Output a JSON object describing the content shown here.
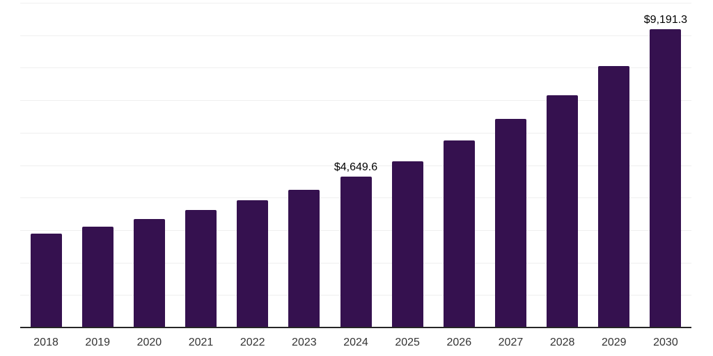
{
  "chart_data": {
    "type": "bar",
    "title": "",
    "xlabel": "",
    "ylabel": "",
    "categories": [
      "2018",
      "2019",
      "2020",
      "2021",
      "2022",
      "2023",
      "2024",
      "2025",
      "2026",
      "2027",
      "2028",
      "2029",
      "2030"
    ],
    "values": [
      2900,
      3110,
      3350,
      3615,
      3920,
      4250,
      4649.6,
      5120,
      5750,
      6420,
      7150,
      8060,
      9191.3
    ],
    "data_labels": [
      {
        "index": 6,
        "text": "$4,649.6"
      },
      {
        "index": 12,
        "text": "$9,191.3"
      }
    ],
    "ylim": [
      0,
      10000
    ],
    "gridline_step": 1000,
    "grid": "horizontal-only",
    "legend": "none",
    "y_axis_ticks_visible": false,
    "colors": {
      "bar": "#35114F",
      "axis_line": "#262626",
      "gridline": "#efefef",
      "tick_label": "#333333",
      "data_label": "#000000",
      "background": "#ffffff"
    }
  }
}
